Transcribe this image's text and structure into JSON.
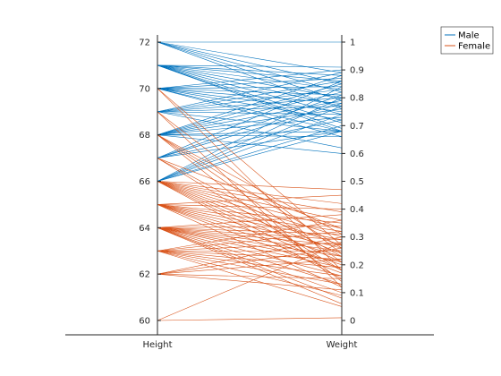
{
  "chart_data": {
    "type": "parallel-coordinates",
    "axes": [
      {
        "name": "Height",
        "ylim": [
          60,
          72
        ],
        "ticks": [
          "60",
          "62",
          "64",
          "66",
          "68",
          "70",
          "72"
        ]
      },
      {
        "name": "Weight",
        "ylim": [
          0,
          1
        ],
        "ticks": [
          "0",
          "0.1",
          "0.2",
          "0.3",
          "0.4",
          "0.5",
          "0.6",
          "0.7",
          "0.8",
          "0.9",
          "1"
        ]
      }
    ],
    "legend": {
      "placement": "top-right"
    },
    "series": [
      {
        "name": "Male",
        "color": "#0072BD",
        "points": [
          [
            72,
            1.0
          ],
          [
            72,
            0.89
          ],
          [
            72,
            0.85
          ],
          [
            72,
            0.82
          ],
          [
            72,
            0.79
          ],
          [
            72,
            0.76
          ],
          [
            71,
            0.91
          ],
          [
            71,
            0.88
          ],
          [
            71,
            0.86
          ],
          [
            71,
            0.83
          ],
          [
            71,
            0.8
          ],
          [
            71,
            0.77
          ],
          [
            71,
            0.74
          ],
          [
            71,
            0.71
          ],
          [
            71,
            0.69
          ],
          [
            71,
            0.68
          ],
          [
            70,
            0.9
          ],
          [
            70,
            0.87
          ],
          [
            70,
            0.84
          ],
          [
            70,
            0.81
          ],
          [
            70,
            0.78
          ],
          [
            70,
            0.75
          ],
          [
            70,
            0.72
          ],
          [
            70,
            0.68
          ],
          [
            70,
            0.66
          ],
          [
            69,
            0.89
          ],
          [
            69,
            0.86
          ],
          [
            69,
            0.83
          ],
          [
            69,
            0.8
          ],
          [
            69,
            0.77
          ],
          [
            69,
            0.74
          ],
          [
            69,
            0.68
          ],
          [
            69,
            0.62
          ],
          [
            68,
            0.88
          ],
          [
            68,
            0.85
          ],
          [
            68,
            0.82
          ],
          [
            68,
            0.79
          ],
          [
            68,
            0.76
          ],
          [
            68,
            0.73
          ],
          [
            68,
            0.68
          ],
          [
            68,
            0.66
          ],
          [
            68,
            0.6
          ],
          [
            67,
            0.86
          ],
          [
            67,
            0.81
          ],
          [
            67,
            0.78
          ],
          [
            67,
            0.72
          ],
          [
            67,
            0.68
          ],
          [
            66,
            0.84
          ],
          [
            66,
            0.8
          ],
          [
            66,
            0.77
          ],
          [
            66,
            0.74
          ],
          [
            66,
            0.7
          ],
          [
            66,
            0.68
          ]
        ]
      },
      {
        "name": "Female",
        "color": "#D95319",
        "points": [
          [
            70,
            0.27
          ],
          [
            70,
            0.18
          ],
          [
            69,
            0.24
          ],
          [
            69,
            0.12
          ],
          [
            68,
            0.31
          ],
          [
            68,
            0.26
          ],
          [
            68,
            0.21
          ],
          [
            68,
            0.14
          ],
          [
            67,
            0.33
          ],
          [
            67,
            0.23
          ],
          [
            67,
            0.18
          ],
          [
            66,
            0.47
          ],
          [
            66,
            0.42
          ],
          [
            66,
            0.39
          ],
          [
            66,
            0.36
          ],
          [
            66,
            0.33
          ],
          [
            66,
            0.3
          ],
          [
            66,
            0.27
          ],
          [
            66,
            0.24
          ],
          [
            66,
            0.21
          ],
          [
            66,
            0.18
          ],
          [
            66,
            0.15
          ],
          [
            65,
            0.45
          ],
          [
            65,
            0.4
          ],
          [
            65,
            0.35
          ],
          [
            65,
            0.32
          ],
          [
            65,
            0.29
          ],
          [
            65,
            0.26
          ],
          [
            65,
            0.23
          ],
          [
            65,
            0.2
          ],
          [
            65,
            0.17
          ],
          [
            65,
            0.12
          ],
          [
            64,
            0.38
          ],
          [
            64,
            0.34
          ],
          [
            64,
            0.31
          ],
          [
            64,
            0.29
          ],
          [
            64,
            0.27
          ],
          [
            64,
            0.25
          ],
          [
            64,
            0.23
          ],
          [
            64,
            0.21
          ],
          [
            64,
            0.19
          ],
          [
            64,
            0.16
          ],
          [
            64,
            0.13
          ],
          [
            64,
            0.1
          ],
          [
            64,
            0.08
          ],
          [
            64,
            0.06
          ],
          [
            63,
            0.36
          ],
          [
            63,
            0.32
          ],
          [
            63,
            0.28
          ],
          [
            63,
            0.25
          ],
          [
            63,
            0.22
          ],
          [
            63,
            0.19
          ],
          [
            63,
            0.16
          ],
          [
            63,
            0.13
          ],
          [
            63,
            0.09
          ],
          [
            63,
            0.05
          ],
          [
            62,
            0.3
          ],
          [
            62,
            0.26
          ],
          [
            62,
            0.22
          ],
          [
            62,
            0.15
          ],
          [
            62,
            0.11
          ],
          [
            60,
            0.28
          ],
          [
            60,
            0.01
          ]
        ]
      }
    ]
  }
}
